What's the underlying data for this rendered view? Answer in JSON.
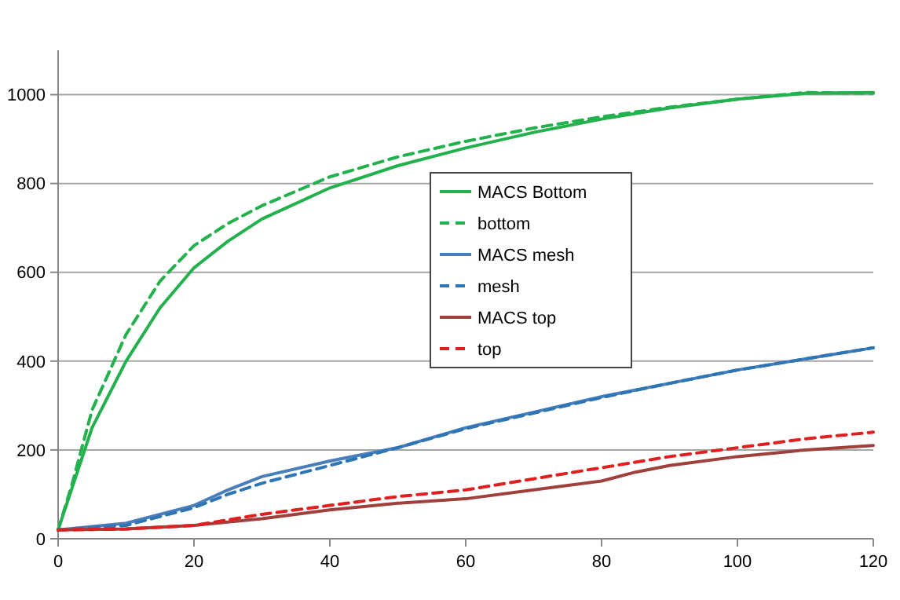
{
  "chart_data": {
    "type": "line",
    "xlim": [
      0,
      120
    ],
    "xticks": [
      0,
      20,
      40,
      60,
      80,
      100,
      120
    ],
    "ylim": [
      0,
      1100
    ],
    "yticks": [
      0,
      200,
      400,
      600,
      800,
      1000
    ],
    "grid": "y",
    "legend": "right",
    "marker": "none",
    "series": [
      {
        "name": "MACS Bottom",
        "color": "#22b14c",
        "line_style": "solid",
        "x": [
          0,
          5,
          10,
          15,
          20,
          25,
          30,
          40,
          50,
          60,
          70,
          80,
          90,
          100,
          110,
          120
        ],
        "values": [
          20,
          250,
          400,
          520,
          610,
          670,
          720,
          790,
          840,
          880,
          915,
          945,
          970,
          990,
          1003,
          1005
        ]
      },
      {
        "name": "bottom",
        "color": "#22b14c",
        "line_style": "dashed",
        "x": [
          0,
          2,
          5,
          10,
          15,
          20,
          25,
          30,
          40,
          50,
          60,
          70,
          80,
          90,
          100,
          110,
          120
        ],
        "values": [
          20,
          120,
          290,
          460,
          580,
          660,
          710,
          750,
          815,
          860,
          895,
          925,
          950,
          972,
          990,
          1005,
          1003
        ]
      },
      {
        "name": "MACS mesh",
        "color": "#4a7ebb",
        "line_style": "solid",
        "x": [
          0,
          10,
          20,
          25,
          30,
          40,
          50,
          60,
          70,
          80,
          90,
          100,
          110,
          120
        ],
        "values": [
          20,
          35,
          75,
          110,
          140,
          175,
          205,
          250,
          285,
          320,
          350,
          380,
          405,
          430
        ]
      },
      {
        "name": "mesh",
        "color": "#2e75b6",
        "line_style": "dashed",
        "x": [
          0,
          10,
          20,
          25,
          30,
          40,
          50,
          60,
          70,
          80,
          90,
          100,
          110,
          120
        ],
        "values": [
          20,
          30,
          70,
          100,
          125,
          165,
          205,
          248,
          283,
          318,
          350,
          380,
          405,
          430
        ]
      },
      {
        "name": "MACS top",
        "color": "#a0403c",
        "line_style": "solid",
        "x": [
          0,
          10,
          20,
          30,
          40,
          50,
          60,
          70,
          80,
          85,
          90,
          100,
          110,
          120
        ],
        "values": [
          20,
          22,
          30,
          45,
          65,
          80,
          90,
          110,
          130,
          150,
          165,
          185,
          200,
          210
        ]
      },
      {
        "name": "top",
        "color": "#e02020",
        "line_style": "dashed",
        "x": [
          0,
          10,
          20,
          30,
          40,
          50,
          60,
          70,
          80,
          90,
          100,
          110,
          120
        ],
        "values": [
          20,
          22,
          30,
          55,
          75,
          95,
          110,
          135,
          160,
          185,
          205,
          225,
          240
        ]
      }
    ]
  }
}
